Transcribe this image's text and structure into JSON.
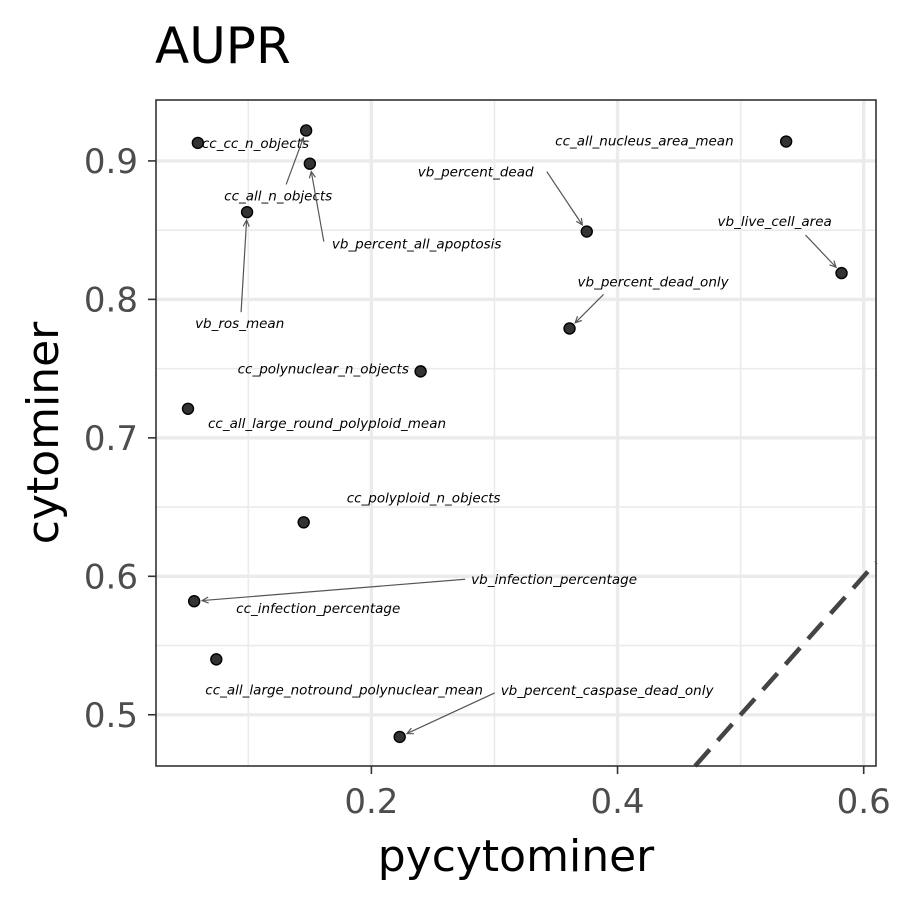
{
  "chart_data": {
    "type": "scatter",
    "title": "AUPR",
    "xlabel": "pycytominer",
    "ylabel": "cytominer",
    "xlim": [
      0.025,
      0.61
    ],
    "ylim": [
      0.463,
      0.944
    ],
    "x_ticks": [
      0.2,
      0.4,
      0.6
    ],
    "y_ticks": [
      0.5,
      0.6,
      0.7,
      0.8,
      0.9
    ],
    "x_tick_labels": [
      "0.2",
      "0.4",
      "0.6"
    ],
    "y_tick_labels": [
      "0.5",
      "0.6",
      "0.7",
      "0.8",
      "0.9"
    ],
    "grid": true,
    "reference_line": "y = x (dashed)",
    "points": [
      {
        "label": "cc_cc_n_objects",
        "x": 0.059,
        "y": 0.913
      },
      {
        "label": "cc_all_n_objects",
        "x": 0.147,
        "y": 0.922
      },
      {
        "label": "vb_percent_all_apoptosis",
        "x": 0.15,
        "y": 0.898
      },
      {
        "label": "vb_ros_mean",
        "x": 0.099,
        "y": 0.863
      },
      {
        "label": "cc_all_nucleus_area_mean",
        "x": 0.537,
        "y": 0.914
      },
      {
        "label": "vb_percent_dead",
        "x": 0.375,
        "y": 0.849
      },
      {
        "label": "vb_live_cell_area",
        "x": 0.582,
        "y": 0.819
      },
      {
        "label": "vb_percent_dead_only",
        "x": 0.361,
        "y": 0.779
      },
      {
        "label": "cc_polynuclear_n_objects",
        "x": 0.24,
        "y": 0.748
      },
      {
        "label": "cc_all_large_round_polyploid_mean",
        "x": 0.051,
        "y": 0.721
      },
      {
        "label": "cc_polyploid_n_objects",
        "x": 0.145,
        "y": 0.639
      },
      {
        "label": "vb_infection_percentage",
        "x": 0.056,
        "y": 0.582
      },
      {
        "label": "cc_infection_percentage",
        "x": 0.056,
        "y": 0.582
      },
      {
        "label": "cc_all_large_notround_polynuclear_mean",
        "x": 0.074,
        "y": 0.54
      },
      {
        "label": "vb_percent_caspase_dead_only",
        "x": 0.223,
        "y": 0.484
      }
    ]
  }
}
